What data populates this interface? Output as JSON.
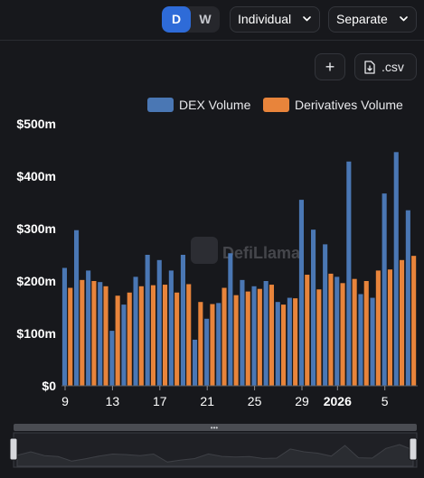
{
  "toolbar": {
    "period_options": [
      "D",
      "W"
    ],
    "period_selected": "D",
    "mode_select": "Individual",
    "layout_select": "Separate",
    "add_button": "+",
    "csv_button": ".csv"
  },
  "watermark": "DefiLlama",
  "colors": {
    "background": "#17181c",
    "dex": "#4a77b4",
    "derivatives": "#e8843b",
    "toggle_active": "#2e6bd8"
  },
  "chart_data": {
    "type": "bar",
    "series": [
      {
        "name": "DEX Volume",
        "color": "#4a77b4",
        "values": [
          225,
          297,
          220,
          198,
          105,
          155,
          208,
          250,
          240,
          220,
          250,
          88,
          128,
          158,
          253,
          202,
          190,
          200,
          160,
          168,
          355,
          298,
          270,
          208,
          428,
          175,
          168,
          367,
          446,
          335
        ]
      },
      {
        "name": "Derivatives Volume",
        "color": "#e8843b",
        "values": [
          187,
          202,
          200,
          190,
          172,
          178,
          190,
          192,
          193,
          178,
          194,
          160,
          156,
          187,
          173,
          180,
          185,
          193,
          155,
          167,
          212,
          184,
          214,
          196,
          204,
          200,
          220,
          222,
          240,
          248
        ]
      }
    ],
    "x_tick_labels": [
      {
        "index": 0,
        "label": "9"
      },
      {
        "index": 4,
        "label": "13"
      },
      {
        "index": 8,
        "label": "17"
      },
      {
        "index": 12,
        "label": "21"
      },
      {
        "index": 16,
        "label": "25"
      },
      {
        "index": 20,
        "label": "29"
      },
      {
        "index": 23,
        "label": "2026"
      },
      {
        "index": 27,
        "label": "5"
      }
    ],
    "y_ticks": [
      0,
      100,
      200,
      300,
      400,
      500
    ],
    "y_tick_labels": [
      "$0",
      "$100m",
      "$200m",
      "$300m",
      "$400m",
      "$500m"
    ],
    "ylim": [
      0,
      500
    ],
    "grid": false,
    "legend_position": "top-right"
  }
}
